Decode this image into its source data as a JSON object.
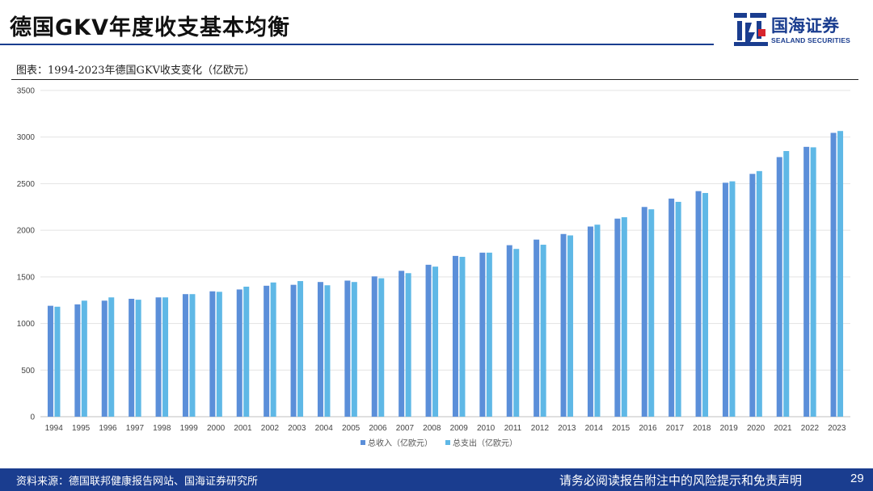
{
  "slide": {
    "title": "德国GKV年度收支基本均衡",
    "figure_caption": "图表：1994-2023年德国GKV收支变化（亿欧元）"
  },
  "logo": {
    "name_cn": "国海证券",
    "name_en": "SEALAND SECURITIES",
    "brand_color": "#1a3d8f",
    "accent_color": "#d7262e"
  },
  "footer": {
    "source": "资料来源：德国联邦健康报告网站、国海证券研究所",
    "disclaimer": "请务必阅读报告附注中的风险提示和免责声明",
    "page_number": "29"
  },
  "chart_data": {
    "type": "bar",
    "title": "",
    "xlabel": "",
    "ylabel": "",
    "ylim": [
      0,
      3500
    ],
    "yticks": [
      0,
      500,
      1000,
      1500,
      2000,
      2500,
      3000,
      3500
    ],
    "grid": true,
    "legend_position": "bottom",
    "categories": [
      "1994",
      "1995",
      "1996",
      "1997",
      "1998",
      "1999",
      "2000",
      "2001",
      "2002",
      "2003",
      "2004",
      "2005",
      "2006",
      "2007",
      "2008",
      "2009",
      "2010",
      "2011",
      "2012",
      "2013",
      "2014",
      "2015",
      "2016",
      "2017",
      "2018",
      "2019",
      "2020",
      "2021",
      "2022",
      "2023"
    ],
    "series": [
      {
        "name": "总收入（亿欧元）",
        "color": "#5b8fd9",
        "values": [
          1190,
          1205,
          1245,
          1265,
          1280,
          1315,
          1345,
          1365,
          1405,
          1415,
          1445,
          1460,
          1505,
          1565,
          1630,
          1725,
          1760,
          1840,
          1900,
          1960,
          2040,
          2125,
          2250,
          2340,
          2420,
          2510,
          2605,
          2785,
          2895,
          3045
        ]
      },
      {
        "name": "总支出（亿欧元）",
        "color": "#5fb8e6",
        "values": [
          1180,
          1245,
          1280,
          1255,
          1280,
          1315,
          1340,
          1395,
          1440,
          1455,
          1410,
          1445,
          1485,
          1540,
          1610,
          1715,
          1760,
          1800,
          1845,
          1945,
          2060,
          2140,
          2225,
          2305,
          2400,
          2525,
          2635,
          2850,
          2890,
          3065
        ]
      }
    ]
  }
}
